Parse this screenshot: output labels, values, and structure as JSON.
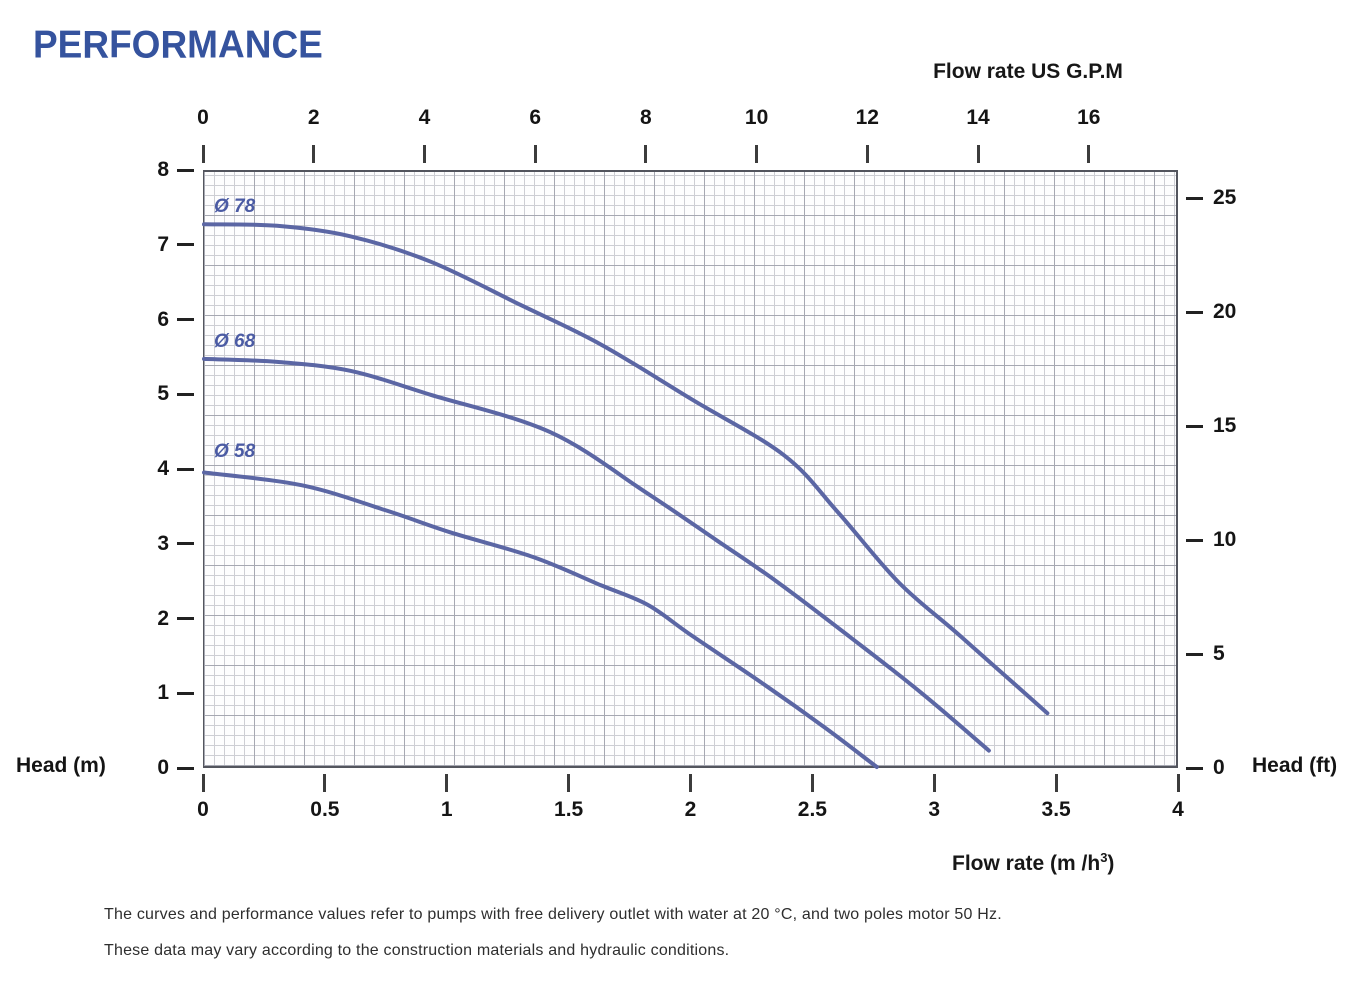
{
  "title": "PERFORMANCE",
  "footnote": {
    "line1": "The curves and performance values refer to pumps with free delivery outlet with water at 20 °C, and two poles motor 50 Hz.",
    "line2": "These data may vary according to the construction materials and hydraulic conditions."
  },
  "chart_data": {
    "type": "line",
    "title": "PERFORMANCE",
    "grid": "on",
    "curve_color": "#5b66a4",
    "label_color": "#4b5ba4",
    "x_axis_bottom": {
      "label_prefix": "Flow rate  (m /h",
      "label_sup": "3",
      "label_suffix": ")",
      "unit": "m3/h",
      "ticks": [
        "0",
        "0.5",
        "1",
        "1.5",
        "2",
        "2.5",
        "3",
        "3.5",
        "4"
      ],
      "tick_values": [
        0,
        0.5,
        1,
        1.5,
        2,
        2.5,
        3,
        3.5,
        4
      ],
      "range": [
        0,
        4
      ]
    },
    "x_axis_top": {
      "label": "Flow rate US  G.P.M",
      "unit": "US GPM",
      "ticks": [
        "0",
        "2",
        "4",
        "6",
        "8",
        "10",
        "12",
        "14",
        "16"
      ],
      "tick_values": [
        0,
        2,
        4,
        6,
        8,
        10,
        12,
        14,
        16
      ],
      "gpm_per_m3h": 4.403
    },
    "y_axis_left": {
      "label": "Head (m)",
      "unit": "m",
      "ticks": [
        "8",
        "7",
        "6",
        "5",
        "4",
        "3",
        "2",
        "1",
        "0"
      ],
      "tick_values": [
        8,
        7,
        6,
        5,
        4,
        3,
        2,
        1,
        0
      ],
      "range": [
        0,
        8
      ]
    },
    "y_axis_right": {
      "label": "Head (ft)",
      "unit": "ft",
      "ticks": [
        "25",
        "20",
        "15",
        "10",
        "5",
        "0"
      ],
      "tick_values": [
        25,
        20,
        15,
        10,
        5,
        0
      ],
      "ft_per_m": 3.2808
    },
    "series": [
      {
        "name": "Ø 78",
        "impeller_diameter_mm": 78,
        "label_pos": [
          10,
          24
        ],
        "points": [
          [
            0,
            7.3
          ],
          [
            0.3,
            7.28
          ],
          [
            0.6,
            7.14
          ],
          [
            0.93,
            6.8
          ],
          [
            1.3,
            6.22
          ],
          [
            1.63,
            5.69
          ],
          [
            2.0,
            4.96
          ],
          [
            2.38,
            4.21
          ],
          [
            2.6,
            3.45
          ],
          [
            2.85,
            2.51
          ],
          [
            3.1,
            1.8
          ],
          [
            3.46,
            0.76
          ]
        ]
      },
      {
        "name": "Ø 68",
        "impeller_diameter_mm": 68,
        "label_pos": [
          10,
          159
        ],
        "points": [
          [
            0,
            5.5
          ],
          [
            0.3,
            5.46
          ],
          [
            0.6,
            5.34
          ],
          [
            0.93,
            5.02
          ],
          [
            1.42,
            4.52
          ],
          [
            1.81,
            3.72
          ],
          [
            2.1,
            3.08
          ],
          [
            2.35,
            2.52
          ],
          [
            2.65,
            1.78
          ],
          [
            2.94,
            1.04
          ],
          [
            3.22,
            0.26
          ]
        ]
      },
      {
        "name": "Ø 58",
        "impeller_diameter_mm": 58,
        "label_pos": [
          10,
          269
        ],
        "points": [
          [
            0,
            3.98
          ],
          [
            0.4,
            3.81
          ],
          [
            0.74,
            3.48
          ],
          [
            1.01,
            3.18
          ],
          [
            1.35,
            2.85
          ],
          [
            1.63,
            2.47
          ],
          [
            1.82,
            2.21
          ],
          [
            2.0,
            1.8
          ],
          [
            2.3,
            1.14
          ],
          [
            2.55,
            0.56
          ],
          [
            2.76,
            0.04
          ]
        ]
      }
    ]
  }
}
